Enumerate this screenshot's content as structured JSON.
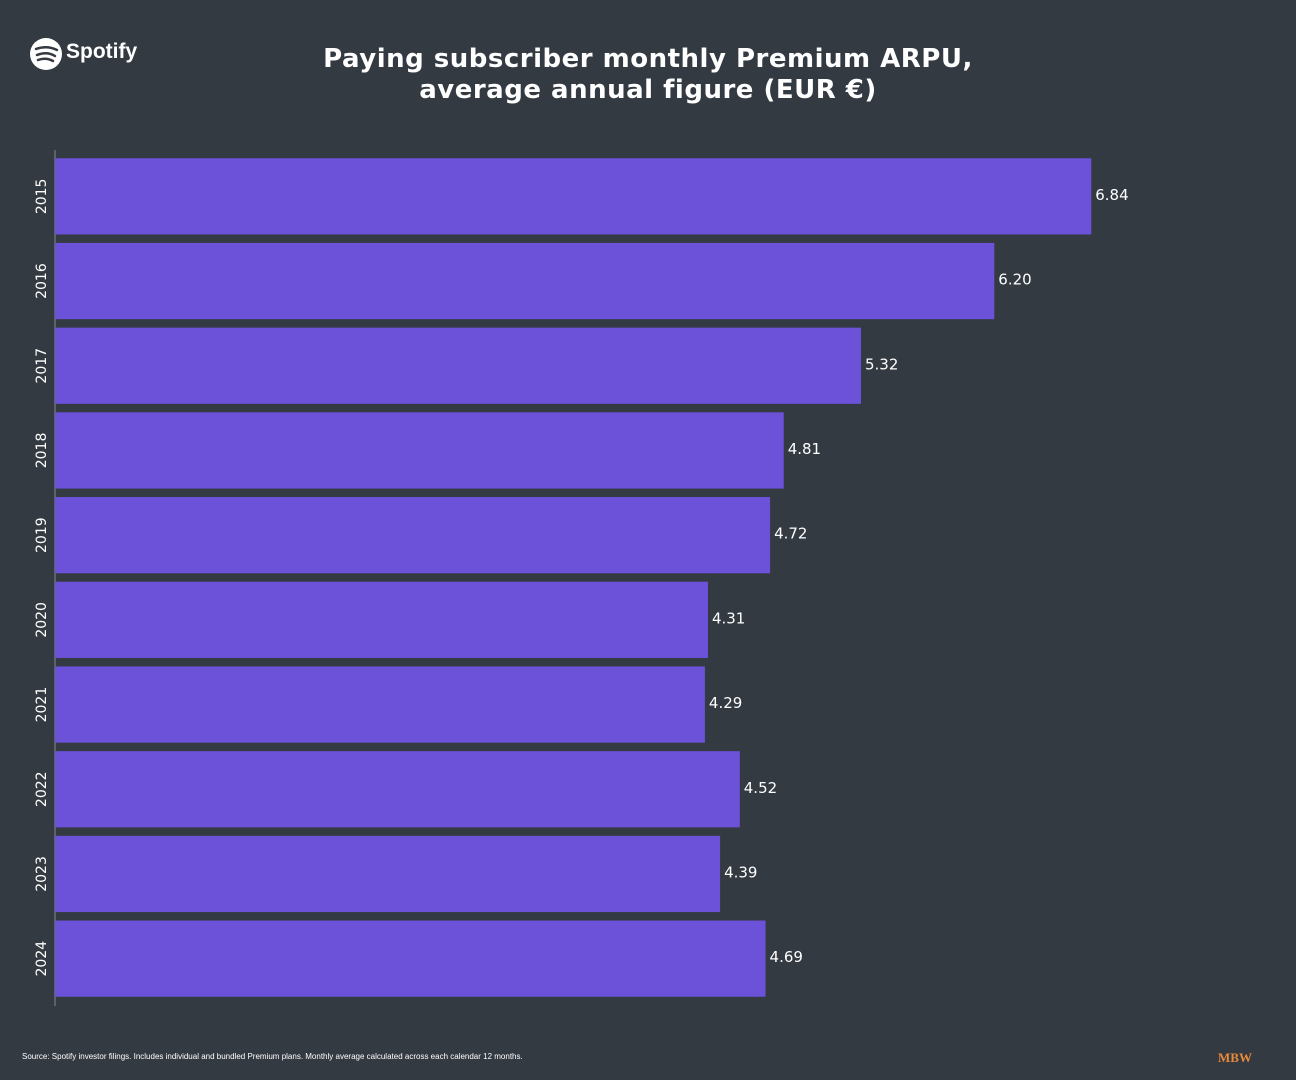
{
  "logo": "Spotify",
  "brand": "MBW",
  "source": "Source: Spotify investor filings. Includes individual and bundled Premium plans. Monthly average calculated across each calendar 12 months.",
  "chart_data": {
    "type": "barh",
    "title": "Paying subscriber monthly Premium ARPU, average annual figure (EUR €)",
    "categories": [
      "2015",
      "2016",
      "2017",
      "2018",
      "2019",
      "2020",
      "2021",
      "2022",
      "2023",
      "2024"
    ],
    "values": [
      6.84,
      6.2,
      5.32,
      4.81,
      4.72,
      4.31,
      4.29,
      4.52,
      4.39,
      4.69
    ],
    "value_labels": [
      "6.84",
      "6.20",
      "5.32",
      "4.81",
      "4.72",
      "4.31",
      "4.29",
      "4.52",
      "4.39",
      "4.69"
    ],
    "color": "#6b52d9",
    "xlim": [
      0,
      8
    ]
  }
}
